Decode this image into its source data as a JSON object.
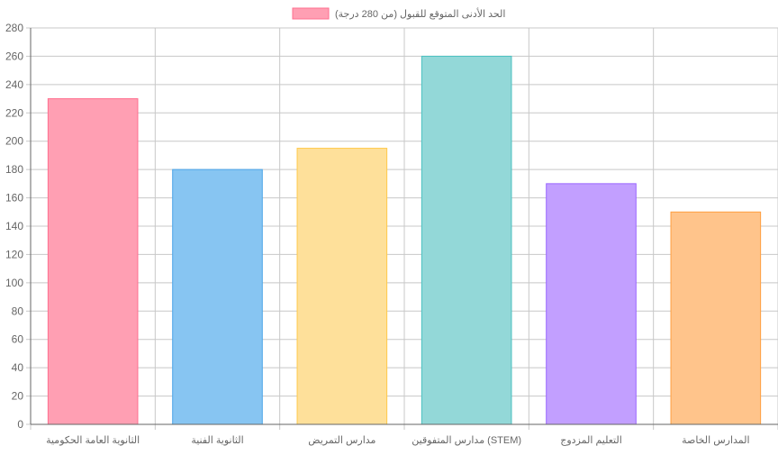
{
  "chart_data": {
    "type": "bar",
    "legend": {
      "label": "الحد الأدنى المتوقع للقبول (من 280 درجة)",
      "position": "top-center"
    },
    "categories": [
      "الثانوية العامة الحكومية",
      "الثانوية الفنية",
      "مدارس التمريض",
      "مدارس المتفوقين (STEM)",
      "التعليم المزدوج",
      "المدارس الخاصة"
    ],
    "values": [
      230,
      180,
      195,
      260,
      170,
      150
    ],
    "ylim": [
      0,
      280
    ],
    "yticks": [
      "0",
      "20",
      "40",
      "60",
      "80",
      "100",
      "120",
      "140",
      "160",
      "180",
      "200",
      "220",
      "240",
      "260",
      "280"
    ],
    "grid": true,
    "colors": {
      "fill": [
        "#ff9fb3",
        "#87c5f2",
        "#fee09a",
        "#93d8d8",
        "#c29fff",
        "#ffc48b"
      ],
      "stroke": [
        "#ff6f8f",
        "#4aa5e8",
        "#ffc94a",
        "#4bc0c0",
        "#9966ff",
        "#ff9f40"
      ],
      "legend_fill": "#ff9fb3",
      "legend_stroke": "#ff6f8f",
      "grid": "#c8c8c8",
      "axis": "#666666",
      "text": "#666666"
    }
  }
}
